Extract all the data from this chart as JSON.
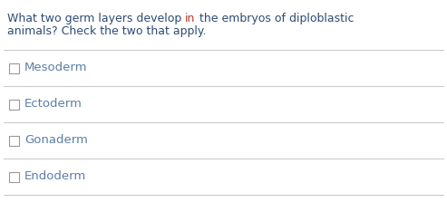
{
  "question_line1_pre": "What two germ layers develop ",
  "question_line1_hi": "in",
  "question_line1_post": " the embryos of diploblastic",
  "question_line2": "animals? Check the two that apply.",
  "question_color": "#2d4b73",
  "highlight_color": "#c0392b",
  "options": [
    "Mesoderm",
    "Ectoderm",
    "Gonaderm",
    "Endoderm"
  ],
  "option_color": "#5b7fa6",
  "divider_color": "#c8c8c8",
  "background_color": "#ffffff",
  "checkbox_edge_color": "#999999",
  "fig_width": 4.93,
  "fig_height": 2.34,
  "dpi": 100
}
